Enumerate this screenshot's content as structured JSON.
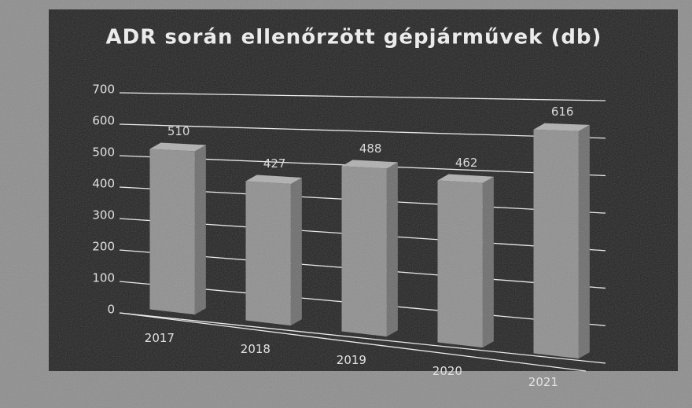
{
  "chart_data": {
    "type": "bar3d",
    "title": "ADR során ellenőrzött gépjárművek (db)",
    "categories": [
      "2017",
      "2018",
      "2019",
      "2020",
      "2021"
    ],
    "values": [
      510,
      427,
      488,
      462,
      616
    ],
    "color": "#8e8e8e",
    "ylim": [
      0,
      700
    ],
    "yticks": [
      0,
      100,
      200,
      300,
      400,
      500,
      600,
      700
    ],
    "grid": true
  }
}
